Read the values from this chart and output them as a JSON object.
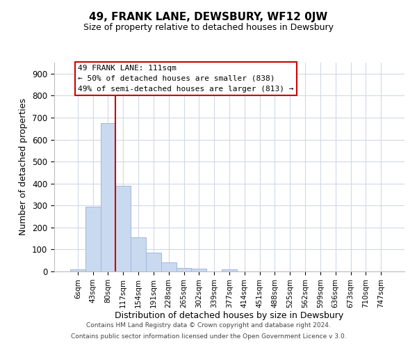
{
  "title": "49, FRANK LANE, DEWSBURY, WF12 0JW",
  "subtitle": "Size of property relative to detached houses in Dewsbury",
  "xlabel": "Distribution of detached houses by size in Dewsbury",
  "ylabel": "Number of detached properties",
  "bar_labels": [
    "6sqm",
    "43sqm",
    "80sqm",
    "117sqm",
    "154sqm",
    "191sqm",
    "228sqm",
    "265sqm",
    "302sqm",
    "339sqm",
    "377sqm",
    "414sqm",
    "451sqm",
    "488sqm",
    "525sqm",
    "562sqm",
    "599sqm",
    "636sqm",
    "673sqm",
    "710sqm",
    "747sqm"
  ],
  "bar_values": [
    8,
    295,
    675,
    390,
    155,
    87,
    40,
    15,
    12,
    0,
    10,
    0,
    0,
    0,
    0,
    0,
    0,
    0,
    0,
    0,
    0
  ],
  "bar_color": "#c9d9f0",
  "bar_edge_color": "#a0b8d8",
  "vline_color": "#cc0000",
  "annotation_title": "49 FRANK LANE: 111sqm",
  "annotation_line1": "← 50% of detached houses are smaller (838)",
  "annotation_line2": "49% of semi-detached houses are larger (813) →",
  "annotation_box_color": "#ffffff",
  "annotation_box_edge": "#cc0000",
  "ylim": [
    0,
    950
  ],
  "yticks": [
    0,
    100,
    200,
    300,
    400,
    500,
    600,
    700,
    800,
    900
  ],
  "footer1": "Contains HM Land Registry data © Crown copyright and database right 2024.",
  "footer2": "Contains public sector information licensed under the Open Government Licence v 3.0.",
  "background_color": "#ffffff",
  "grid_color": "#d0d8e8"
}
